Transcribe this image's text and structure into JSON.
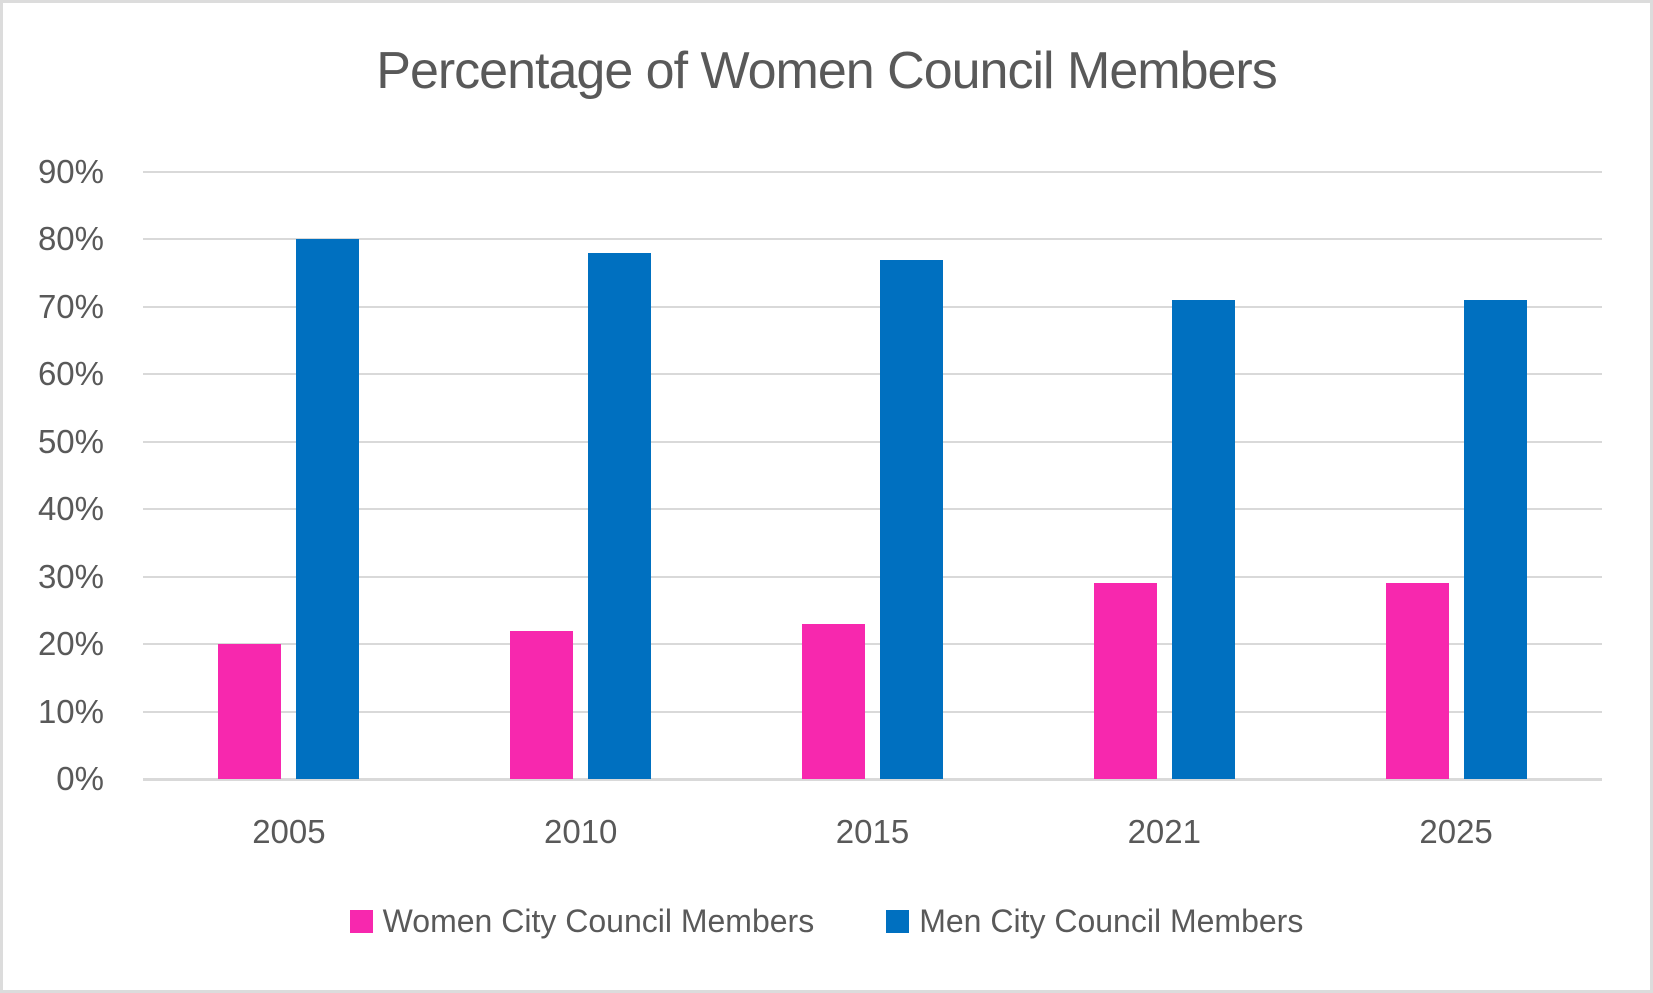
{
  "frame": {
    "background_color": "#FFFFFF",
    "border_color": "#DCDCDC"
  },
  "chart_data": {
    "type": "bar",
    "title": "Percentage of Women Council Members",
    "categories": [
      "2005",
      "2010",
      "2015",
      "2021",
      "2025"
    ],
    "series": [
      {
        "name": "Women City Council Members",
        "color": "#F728AE",
        "values": [
          20,
          22,
          23,
          29,
          29
        ]
      },
      {
        "name": "Men City Council Members",
        "color": "#0070C0",
        "values": [
          80,
          78,
          77,
          71,
          71
        ]
      }
    ],
    "xlabel": "",
    "ylabel": "",
    "ylim": [
      0,
      90
    ],
    "y_ticks": [
      "0%",
      "10%",
      "20%",
      "30%",
      "40%",
      "50%",
      "60%",
      "70%",
      "80%",
      "90%"
    ],
    "grid": true,
    "gridline_color": "#D9D9D9",
    "text_color": "#595959",
    "legend_position": "bottom"
  }
}
